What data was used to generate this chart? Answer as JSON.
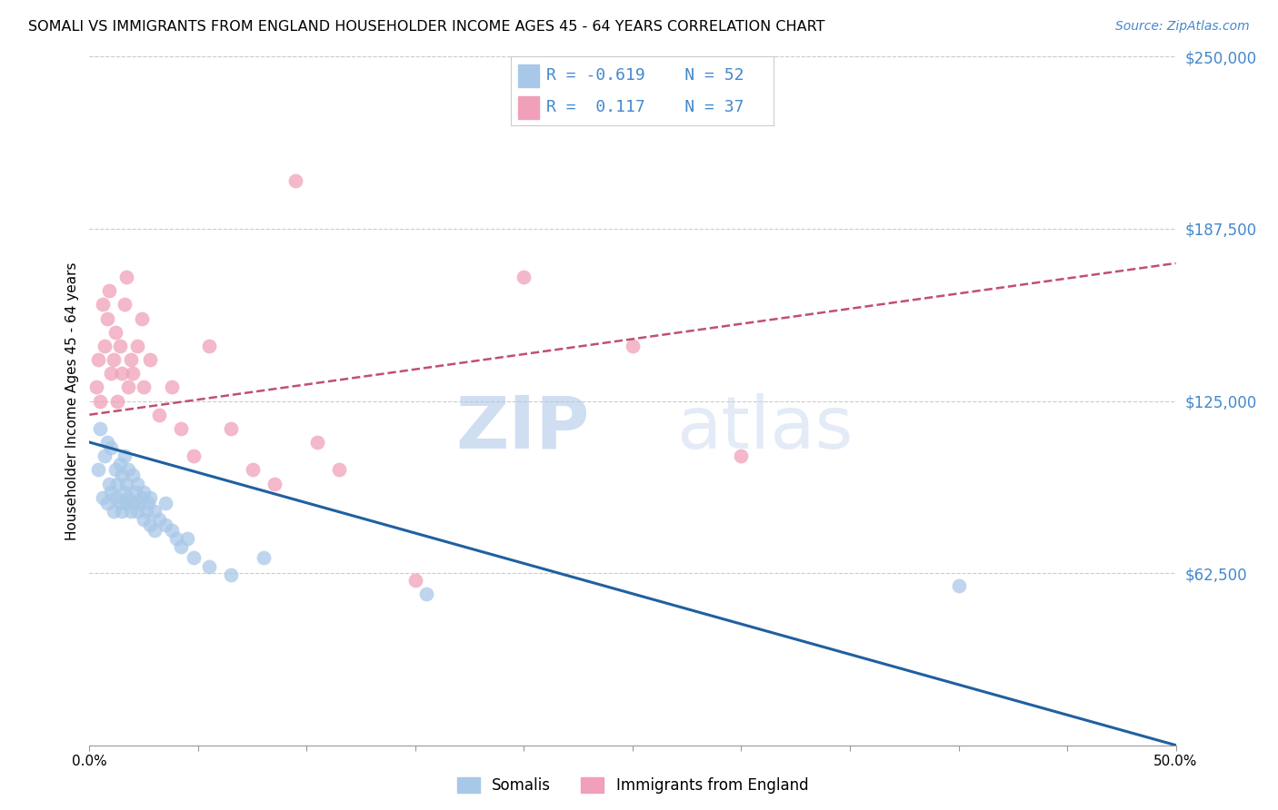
{
  "title": "SOMALI VS IMMIGRANTS FROM ENGLAND HOUSEHOLDER INCOME AGES 45 - 64 YEARS CORRELATION CHART",
  "source": "Source: ZipAtlas.com",
  "ylabel": "Householder Income Ages 45 - 64 years",
  "xlim": [
    0.0,
    0.5
  ],
  "ylim": [
    0,
    250000
  ],
  "xticks": [
    0.0,
    0.05,
    0.1,
    0.15,
    0.2,
    0.25,
    0.3,
    0.35,
    0.4,
    0.45,
    0.5
  ],
  "ytick_right_labels": [
    "$250,000",
    "$187,500",
    "$125,000",
    "$62,500"
  ],
  "ytick_right_values": [
    250000,
    187500,
    125000,
    62500
  ],
  "watermark_zip": "ZIP",
  "watermark_atlas": "atlas",
  "legend_blue_label": "Somalis",
  "legend_pink_label": "Immigrants from England",
  "blue_R": "-0.619",
  "blue_N": "52",
  "pink_R": "0.117",
  "pink_N": "37",
  "blue_color": "#a8c8e8",
  "pink_color": "#f0a0b8",
  "blue_line_color": "#2060a0",
  "pink_line_color": "#c05070",
  "blue_line_x": [
    0.0,
    0.5
  ],
  "blue_line_y": [
    110000,
    0
  ],
  "pink_line_x": [
    0.0,
    0.5
  ],
  "pink_line_y": [
    120000,
    175000
  ],
  "blue_scatter_x": [
    0.004,
    0.005,
    0.006,
    0.007,
    0.008,
    0.008,
    0.009,
    0.01,
    0.01,
    0.011,
    0.012,
    0.012,
    0.013,
    0.014,
    0.014,
    0.015,
    0.015,
    0.016,
    0.016,
    0.017,
    0.017,
    0.018,
    0.018,
    0.019,
    0.02,
    0.02,
    0.021,
    0.022,
    0.022,
    0.023,
    0.024,
    0.025,
    0.025,
    0.026,
    0.027,
    0.028,
    0.028,
    0.03,
    0.03,
    0.032,
    0.035,
    0.035,
    0.038,
    0.04,
    0.042,
    0.045,
    0.048,
    0.055,
    0.065,
    0.08,
    0.155,
    0.4
  ],
  "blue_scatter_y": [
    100000,
    115000,
    90000,
    105000,
    88000,
    110000,
    95000,
    92000,
    108000,
    85000,
    90000,
    100000,
    95000,
    88000,
    102000,
    85000,
    98000,
    92000,
    105000,
    88000,
    95000,
    90000,
    100000,
    85000,
    88000,
    98000,
    92000,
    85000,
    95000,
    88000,
    90000,
    82000,
    92000,
    85000,
    88000,
    80000,
    90000,
    85000,
    78000,
    82000,
    80000,
    88000,
    78000,
    75000,
    72000,
    75000,
    68000,
    65000,
    62000,
    68000,
    55000,
    58000
  ],
  "pink_scatter_x": [
    0.003,
    0.004,
    0.005,
    0.006,
    0.007,
    0.008,
    0.009,
    0.01,
    0.011,
    0.012,
    0.013,
    0.014,
    0.015,
    0.016,
    0.017,
    0.018,
    0.019,
    0.02,
    0.022,
    0.024,
    0.025,
    0.028,
    0.032,
    0.038,
    0.042,
    0.048,
    0.055,
    0.065,
    0.075,
    0.085,
    0.095,
    0.105,
    0.115,
    0.15,
    0.2,
    0.25,
    0.3
  ],
  "pink_scatter_y": [
    130000,
    140000,
    125000,
    160000,
    145000,
    155000,
    165000,
    135000,
    140000,
    150000,
    125000,
    145000,
    135000,
    160000,
    170000,
    130000,
    140000,
    135000,
    145000,
    155000,
    130000,
    140000,
    120000,
    130000,
    115000,
    105000,
    145000,
    115000,
    100000,
    95000,
    205000,
    110000,
    100000,
    60000,
    170000,
    145000,
    105000
  ],
  "background_color": "#ffffff",
  "grid_color": "#cccccc"
}
